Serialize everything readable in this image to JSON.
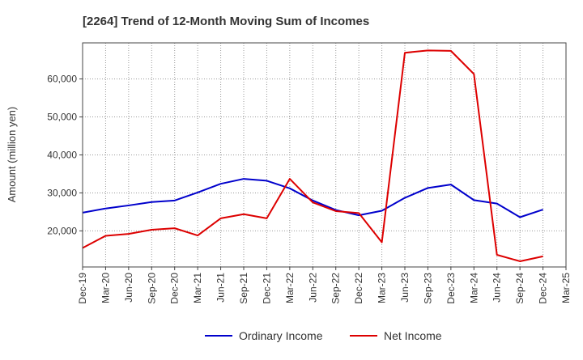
{
  "chart_data": {
    "type": "line",
    "title": "[2264]  Trend of 12-Month Moving Sum of Incomes",
    "xlabel": "",
    "ylabel": "Amount (million yen)",
    "categories": [
      "Dec-19",
      "Mar-20",
      "Jun-20",
      "Sep-20",
      "Dec-20",
      "Mar-21",
      "Jun-21",
      "Sep-21",
      "Dec-21",
      "Mar-22",
      "Jun-22",
      "Sep-22",
      "Dec-22",
      "Mar-23",
      "Jun-23",
      "Sep-23",
      "Dec-23",
      "Mar-24",
      "Jun-24",
      "Sep-24",
      "Dec-24",
      "Mar-25"
    ],
    "ylim": [
      10500,
      69500
    ],
    "yticks": [
      20000,
      30000,
      40000,
      50000,
      60000
    ],
    "ytick_labels": [
      "20,000",
      "30,000",
      "40,000",
      "50,000",
      "60,000"
    ],
    "grid": true,
    "legend_position": "bottom-center",
    "series": [
      {
        "name": "Ordinary Income",
        "color": "#0000cc",
        "values": [
          24800,
          25900,
          26700,
          27600,
          28000,
          30100,
          32400,
          33700,
          33200,
          31200,
          28000,
          25500,
          24100,
          25300,
          28700,
          31300,
          32200,
          28100,
          27200,
          23600,
          25600,
          null
        ]
      },
      {
        "name": "Net Income",
        "color": "#dd0000",
        "values": [
          15500,
          18700,
          19200,
          20300,
          20700,
          18800,
          23300,
          24400,
          23300,
          33700,
          27500,
          25200,
          24700,
          17000,
          66900,
          67500,
          67400,
          61300,
          13700,
          12000,
          13300,
          null
        ]
      }
    ]
  }
}
